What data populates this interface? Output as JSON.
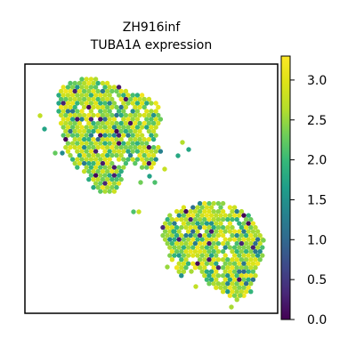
{
  "chart_data": {
    "type": "scatter",
    "subtype": "spatial-hexbin",
    "title": "ZH916inf",
    "subtitle": "TUBA1A expression",
    "xlabel": "",
    "ylabel": "",
    "colorbar": {
      "label": "",
      "colormap": "viridis",
      "range": [
        0.0,
        3.3
      ],
      "ticks": [
        0.0,
        0.5,
        1.0,
        1.5,
        2.0,
        2.5,
        3.0
      ],
      "tick_labels": [
        "0.0",
        "0.5",
        "1.0",
        "1.5",
        "2.0",
        "2.5",
        "3.0"
      ]
    },
    "grid": false,
    "regions": [
      {
        "name": "upper-left tissue cluster",
        "typical_value": 2.4
      },
      {
        "name": "lower-right tissue cluster",
        "typical_value": 2.3
      }
    ]
  }
}
